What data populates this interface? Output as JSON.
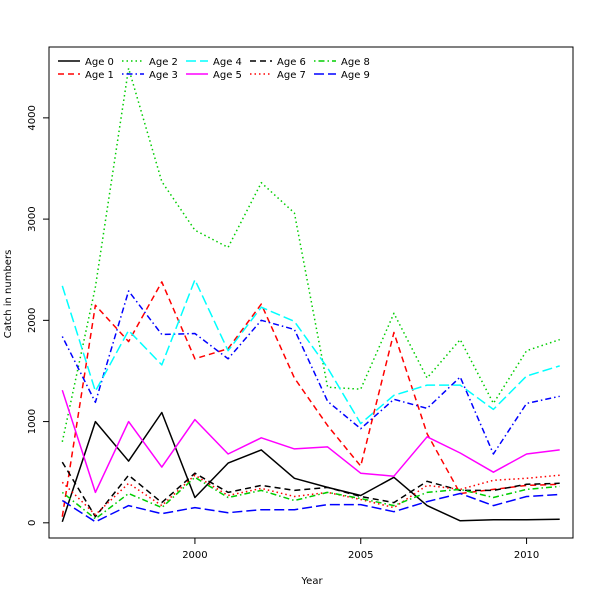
{
  "chart_data": {
    "type": "line",
    "title": "",
    "xlabel": "Year",
    "ylabel": "Catch in numbers",
    "xlim": [
      1995.6,
      2011.4
    ],
    "ylim": [
      -150,
      4700
    ],
    "x_ticks": [
      2000,
      2005,
      2010
    ],
    "y_ticks": [
      0,
      1000,
      2000,
      3000,
      4000
    ],
    "grid": false,
    "legend_position": "top-left",
    "x": [
      1996,
      1997,
      1998,
      1999,
      2000,
      2001,
      2002,
      2003,
      2004,
      2005,
      2006,
      2007,
      2008,
      2009,
      2010,
      2011
    ],
    "series": [
      {
        "name": "Age 0",
        "color": "#000000",
        "dash": "solid",
        "values": [
          10,
          1000,
          610,
          1090,
          250,
          590,
          720,
          440,
          350,
          270,
          450,
          170,
          20,
          30,
          30,
          35
        ]
      },
      {
        "name": "Age 1",
        "color": "#ff0000",
        "dash": "dashed",
        "values": [
          60,
          2150,
          1790,
          2380,
          1620,
          1720,
          2160,
          1430,
          960,
          560,
          1880,
          880,
          290,
          330,
          370,
          380
        ]
      },
      {
        "name": "Age 2",
        "color": "#00cd00",
        "dash": "dotted",
        "values": [
          800,
          2330,
          4490,
          3370,
          2890,
          2720,
          3360,
          3060,
          1340,
          1320,
          2070,
          1430,
          1810,
          1180,
          1700,
          1810
        ]
      },
      {
        "name": "Age 3",
        "color": "#0000ff",
        "dash": "dotdash",
        "values": [
          1840,
          1190,
          2290,
          1860,
          1870,
          1620,
          2000,
          1910,
          1200,
          930,
          1220,
          1130,
          1440,
          680,
          1180,
          1250
        ]
      },
      {
        "name": "Age 4",
        "color": "#00ffff",
        "dash": "longdash",
        "values": [
          2340,
          1300,
          1900,
          1560,
          2400,
          1700,
          2130,
          1990,
          1530,
          980,
          1260,
          1360,
          1360,
          1120,
          1450,
          1550
        ]
      },
      {
        "name": "Age 5",
        "color": "#ff00ff",
        "dash": "solid",
        "values": [
          1310,
          300,
          1000,
          550,
          1020,
          680,
          840,
          730,
          750,
          490,
          460,
          850,
          690,
          500,
          680,
          720
        ]
      },
      {
        "name": "Age 6",
        "color": "#000000",
        "dash": "dashed",
        "values": [
          600,
          60,
          470,
          200,
          490,
          300,
          370,
          320,
          350,
          260,
          200,
          410,
          320,
          320,
          380,
          390
        ]
      },
      {
        "name": "Age 7",
        "color": "#ff0000",
        "dash": "dotted",
        "values": [
          400,
          80,
          390,
          170,
          470,
          270,
          340,
          260,
          300,
          230,
          150,
          370,
          330,
          420,
          440,
          470
        ]
      },
      {
        "name": "Age 8",
        "color": "#00cd00",
        "dash": "dotdash",
        "values": [
          300,
          40,
          290,
          150,
          450,
          250,
          320,
          220,
          300,
          240,
          170,
          300,
          330,
          250,
          330,
          360
        ]
      },
      {
        "name": "Age 9",
        "color": "#0000ff",
        "dash": "longdash",
        "values": [
          220,
          10,
          170,
          90,
          150,
          100,
          130,
          130,
          180,
          180,
          110,
          210,
          290,
          170,
          260,
          280
        ]
      }
    ]
  }
}
